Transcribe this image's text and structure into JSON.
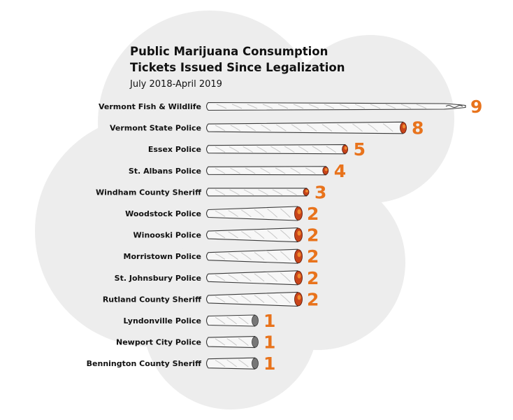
{
  "colors": {
    "accent": "#e8731c",
    "background_blob": "#ededed",
    "paper": "#f7f7f7",
    "paper_shade": "#c8c8c8",
    "paper_outline": "#3a3a3a",
    "ember": "#c8441a",
    "ember_light": "#f08a2e",
    "ash": "#777777"
  },
  "chart_data": {
    "type": "bar",
    "title_lines": [
      "Public Marijuana Consumption",
      "Tickets Issued Since Legalization"
    ],
    "subtitle": "July 2018-April 2019",
    "categories": [
      "Vermont Fish & Wildlife",
      "Vermont State Police",
      "Essex Police",
      "St. Albans Police",
      "Windham County Sheriff",
      "Woodstock Police",
      "Winooski Police",
      "Morristown Police",
      "St. Johnsbury Police",
      "Rutland County Sheriff",
      "Lyndonville Police",
      "Newport City Police",
      "Bennington County Sheriff"
    ],
    "values": [
      9,
      8,
      5,
      4,
      3,
      2,
      2,
      2,
      2,
      2,
      1,
      1,
      1
    ],
    "orientation": "horizontal",
    "grid": false,
    "legend": "none",
    "data_labels": true
  }
}
